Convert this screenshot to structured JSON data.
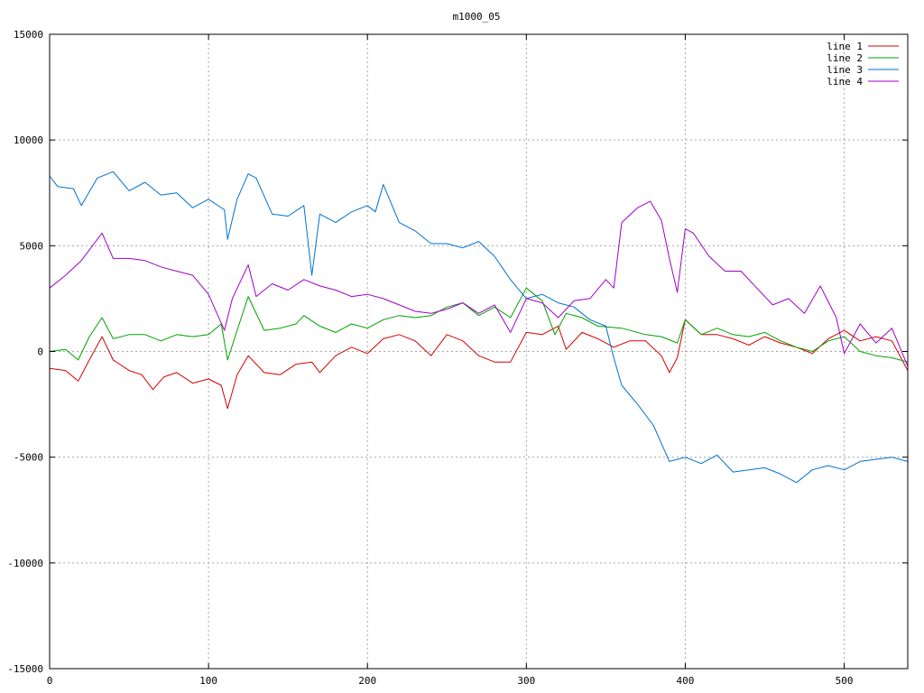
{
  "chart_data": {
    "type": "line",
    "title": "m1000_05",
    "xlabel": "",
    "ylabel": "",
    "xlim": [
      0,
      540
    ],
    "ylim": [
      -15000,
      15000
    ],
    "x_ticks": [
      0,
      100,
      200,
      300,
      400,
      500
    ],
    "y_ticks": [
      -15000,
      -10000,
      -5000,
      0,
      5000,
      10000,
      15000
    ],
    "grid": true,
    "legend_position": "top-right",
    "series": [
      {
        "name": "line 1",
        "color": "#d40000",
        "points": [
          [
            0,
            -800
          ],
          [
            10,
            -900
          ],
          [
            18,
            -1400
          ],
          [
            25,
            -400
          ],
          [
            33,
            700
          ],
          [
            40,
            -400
          ],
          [
            50,
            -900
          ],
          [
            58,
            -1100
          ],
          [
            65,
            -1800
          ],
          [
            72,
            -1200
          ],
          [
            80,
            -1000
          ],
          [
            90,
            -1500
          ],
          [
            100,
            -1300
          ],
          [
            108,
            -1600
          ],
          [
            112,
            -2700
          ],
          [
            118,
            -1100
          ],
          [
            125,
            -200
          ],
          [
            135,
            -1000
          ],
          [
            145,
            -1100
          ],
          [
            155,
            -600
          ],
          [
            165,
            -500
          ],
          [
            170,
            -1000
          ],
          [
            180,
            -200
          ],
          [
            190,
            200
          ],
          [
            200,
            -100
          ],
          [
            210,
            600
          ],
          [
            220,
            800
          ],
          [
            230,
            500
          ],
          [
            240,
            -200
          ],
          [
            250,
            800
          ],
          [
            260,
            500
          ],
          [
            270,
            -200
          ],
          [
            280,
            -500
          ],
          [
            290,
            -500
          ],
          [
            300,
            900
          ],
          [
            310,
            800
          ],
          [
            320,
            1200
          ],
          [
            325,
            100
          ],
          [
            335,
            900
          ],
          [
            345,
            600
          ],
          [
            355,
            200
          ],
          [
            365,
            500
          ],
          [
            375,
            500
          ],
          [
            385,
            -200
          ],
          [
            390,
            -1000
          ],
          [
            395,
            -300
          ],
          [
            400,
            1500
          ],
          [
            410,
            800
          ],
          [
            420,
            800
          ],
          [
            430,
            600
          ],
          [
            440,
            300
          ],
          [
            450,
            700
          ],
          [
            460,
            400
          ],
          [
            470,
            200
          ],
          [
            480,
            -100
          ],
          [
            490,
            600
          ],
          [
            500,
            1000
          ],
          [
            510,
            500
          ],
          [
            520,
            700
          ],
          [
            530,
            500
          ],
          [
            540,
            -900
          ]
        ]
      },
      {
        "name": "line 2",
        "color": "#00a000",
        "points": [
          [
            0,
            0
          ],
          [
            10,
            100
          ],
          [
            18,
            -400
          ],
          [
            25,
            700
          ],
          [
            33,
            1600
          ],
          [
            40,
            600
          ],
          [
            50,
            800
          ],
          [
            60,
            800
          ],
          [
            70,
            500
          ],
          [
            80,
            800
          ],
          [
            90,
            700
          ],
          [
            100,
            800
          ],
          [
            108,
            1300
          ],
          [
            112,
            -400
          ],
          [
            118,
            1000
          ],
          [
            125,
            2600
          ],
          [
            135,
            1000
          ],
          [
            145,
            1100
          ],
          [
            155,
            1300
          ],
          [
            160,
            1700
          ],
          [
            170,
            1200
          ],
          [
            180,
            900
          ],
          [
            190,
            1300
          ],
          [
            200,
            1100
          ],
          [
            210,
            1500
          ],
          [
            220,
            1700
          ],
          [
            230,
            1600
          ],
          [
            240,
            1700
          ],
          [
            250,
            2100
          ],
          [
            260,
            2300
          ],
          [
            270,
            1700
          ],
          [
            280,
            2100
          ],
          [
            290,
            1600
          ],
          [
            300,
            3000
          ],
          [
            310,
            2400
          ],
          [
            318,
            800
          ],
          [
            325,
            1800
          ],
          [
            335,
            1600
          ],
          [
            345,
            1200
          ],
          [
            360,
            1100
          ],
          [
            375,
            800
          ],
          [
            385,
            700
          ],
          [
            395,
            400
          ],
          [
            400,
            1500
          ],
          [
            410,
            800
          ],
          [
            420,
            1100
          ],
          [
            430,
            800
          ],
          [
            440,
            700
          ],
          [
            450,
            900
          ],
          [
            460,
            500
          ],
          [
            470,
            200
          ],
          [
            480,
            0
          ],
          [
            490,
            500
          ],
          [
            500,
            700
          ],
          [
            510,
            0
          ],
          [
            520,
            -200
          ],
          [
            530,
            -300
          ],
          [
            540,
            -500
          ]
        ]
      },
      {
        "name": "line 3",
        "color": "#0070d0",
        "points": [
          [
            0,
            8300
          ],
          [
            5,
            7800
          ],
          [
            15,
            7700
          ],
          [
            20,
            6900
          ],
          [
            30,
            8200
          ],
          [
            40,
            8500
          ],
          [
            50,
            7600
          ],
          [
            60,
            8000
          ],
          [
            70,
            7400
          ],
          [
            80,
            7500
          ],
          [
            90,
            6800
          ],
          [
            100,
            7200
          ],
          [
            110,
            6700
          ],
          [
            112,
            5300
          ],
          [
            118,
            7200
          ],
          [
            125,
            8400
          ],
          [
            130,
            8200
          ],
          [
            140,
            6500
          ],
          [
            150,
            6400
          ],
          [
            160,
            6900
          ],
          [
            165,
            3600
          ],
          [
            170,
            6500
          ],
          [
            180,
            6100
          ],
          [
            190,
            6600
          ],
          [
            200,
            6900
          ],
          [
            205,
            6600
          ],
          [
            210,
            7900
          ],
          [
            220,
            6100
          ],
          [
            230,
            5700
          ],
          [
            240,
            5100
          ],
          [
            250,
            5100
          ],
          [
            260,
            4900
          ],
          [
            270,
            5200
          ],
          [
            280,
            4500
          ],
          [
            290,
            3400
          ],
          [
            300,
            2500
          ],
          [
            310,
            2700
          ],
          [
            320,
            2300
          ],
          [
            330,
            2100
          ],
          [
            340,
            1500
          ],
          [
            350,
            1200
          ],
          [
            355,
            -300
          ],
          [
            360,
            -1600
          ],
          [
            370,
            -2500
          ],
          [
            380,
            -3500
          ],
          [
            390,
            -5200
          ],
          [
            400,
            -5000
          ],
          [
            410,
            -5300
          ],
          [
            420,
            -4900
          ],
          [
            430,
            -5700
          ],
          [
            440,
            -5600
          ],
          [
            450,
            -5500
          ],
          [
            460,
            -5800
          ],
          [
            470,
            -6200
          ],
          [
            480,
            -5600
          ],
          [
            490,
            -5400
          ],
          [
            500,
            -5600
          ],
          [
            510,
            -5200
          ],
          [
            520,
            -5100
          ],
          [
            530,
            -5000
          ],
          [
            540,
            -5200
          ]
        ]
      },
      {
        "name": "line 4",
        "color": "#a000c8",
        "points": [
          [
            0,
            3000
          ],
          [
            10,
            3600
          ],
          [
            20,
            4300
          ],
          [
            33,
            5600
          ],
          [
            40,
            4400
          ],
          [
            50,
            4400
          ],
          [
            60,
            4300
          ],
          [
            70,
            4000
          ],
          [
            80,
            3800
          ],
          [
            90,
            3600
          ],
          [
            100,
            2700
          ],
          [
            110,
            1000
          ],
          [
            115,
            2500
          ],
          [
            125,
            4100
          ],
          [
            130,
            2600
          ],
          [
            140,
            3200
          ],
          [
            150,
            2900
          ],
          [
            160,
            3400
          ],
          [
            170,
            3100
          ],
          [
            180,
            2900
          ],
          [
            190,
            2600
          ],
          [
            200,
            2700
          ],
          [
            210,
            2500
          ],
          [
            220,
            2200
          ],
          [
            230,
            1900
          ],
          [
            240,
            1800
          ],
          [
            250,
            2000
          ],
          [
            260,
            2300
          ],
          [
            270,
            1800
          ],
          [
            280,
            2200
          ],
          [
            290,
            900
          ],
          [
            300,
            2500
          ],
          [
            310,
            2300
          ],
          [
            320,
            1600
          ],
          [
            330,
            2400
          ],
          [
            340,
            2500
          ],
          [
            350,
            3400
          ],
          [
            355,
            3000
          ],
          [
            360,
            6100
          ],
          [
            370,
            6800
          ],
          [
            378,
            7100
          ],
          [
            385,
            6200
          ],
          [
            390,
            4400
          ],
          [
            395,
            2800
          ],
          [
            400,
            5800
          ],
          [
            405,
            5600
          ],
          [
            415,
            4500
          ],
          [
            425,
            3800
          ],
          [
            435,
            3800
          ],
          [
            445,
            3000
          ],
          [
            455,
            2200
          ],
          [
            465,
            2500
          ],
          [
            475,
            1800
          ],
          [
            485,
            3100
          ],
          [
            495,
            1600
          ],
          [
            500,
            -100
          ],
          [
            510,
            1300
          ],
          [
            520,
            400
          ],
          [
            530,
            1100
          ],
          [
            540,
            -700
          ]
        ]
      }
    ]
  }
}
